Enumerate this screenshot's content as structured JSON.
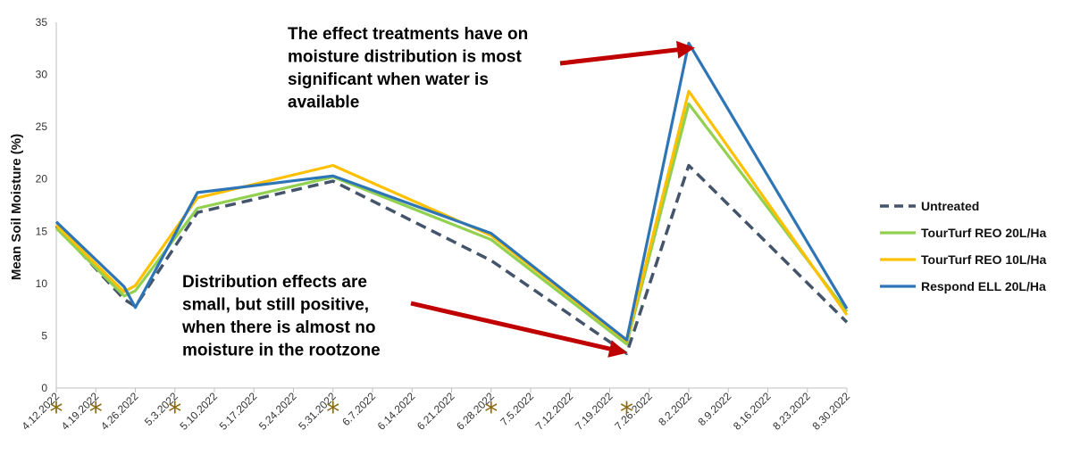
{
  "chart_data": {
    "type": "line",
    "title": "",
    "xlabel": "",
    "ylabel": "Mean Soil Moisture (%)",
    "ylim": [
      0,
      35
    ],
    "yticks": [
      0,
      5,
      10,
      15,
      20,
      25,
      30,
      35
    ],
    "grid": false,
    "legend_position": "right",
    "x_tick_labels": [
      "4.12.2022",
      "4.19.2022",
      "4.26.2022",
      "5.3.2022",
      "5.10.2022",
      "5.17.2022",
      "5.24.2022",
      "5.31.2022",
      "6.7.2022",
      "6.14.2022",
      "6.21.2022",
      "6.28.2022",
      "7.5.2022",
      "7.12.2022",
      "7.19.2022",
      "7.26.2022",
      "8.2.2022",
      "8.9.2022",
      "8.16.2022",
      "8.23.2022",
      "8.30.2022"
    ],
    "x_dates": [
      "4.12.2022",
      "4.24.2022",
      "4.26.2022",
      "5.7.2022",
      "5.31.2022",
      "6.28.2022",
      "7.22.2022",
      "8.2.2022",
      "8.30.2022"
    ],
    "series": [
      {
        "name": "Untreated",
        "color": "#44546a",
        "dash": true,
        "values": [
          15.5,
          8.5,
          7.8,
          16.8,
          19.8,
          12.2,
          3.3,
          21.3,
          6.3
        ]
      },
      {
        "name": "TourTurf REO 20L/Ha",
        "color": "#92d050",
        "dash": false,
        "values": [
          15.3,
          8.8,
          9.3,
          17.2,
          20.2,
          14.2,
          4.2,
          27.2,
          7.3
        ]
      },
      {
        "name": "TourTurf REO 10L/Ha",
        "color": "#ffc000",
        "dash": false,
        "values": [
          15.6,
          9.2,
          9.8,
          18.2,
          21.3,
          14.6,
          4.5,
          28.4,
          7.0
        ]
      },
      {
        "name": "Respond ELL 20L/Ha",
        "color": "#2e75b6",
        "dash": false,
        "values": [
          15.9,
          9.7,
          7.7,
          18.7,
          20.3,
          14.8,
          4.6,
          33.0,
          7.6
        ]
      }
    ],
    "rain_markers": [
      "4.12.2022",
      "4.19.2022",
      "5.3.2022",
      "5.31.2022",
      "6.28.2022",
      "7.22.2022"
    ],
    "rain_marker_symbol": "*",
    "marker_color": "#8a6a12",
    "arrow_color": "#c00000",
    "annotations": [
      {
        "lines": [
          "The effect treatments have on",
          "moisture distribution is most",
          "significant when water is",
          "available"
        ],
        "arrow_to": [
          "8.2.2022",
          32.5
        ]
      },
      {
        "lines": [
          "Distribution effects are",
          "small, but still positive,",
          "when there is almost no",
          "moisture in the rootzone"
        ],
        "arrow_to": [
          "7.21.2022",
          3.5
        ]
      }
    ]
  }
}
